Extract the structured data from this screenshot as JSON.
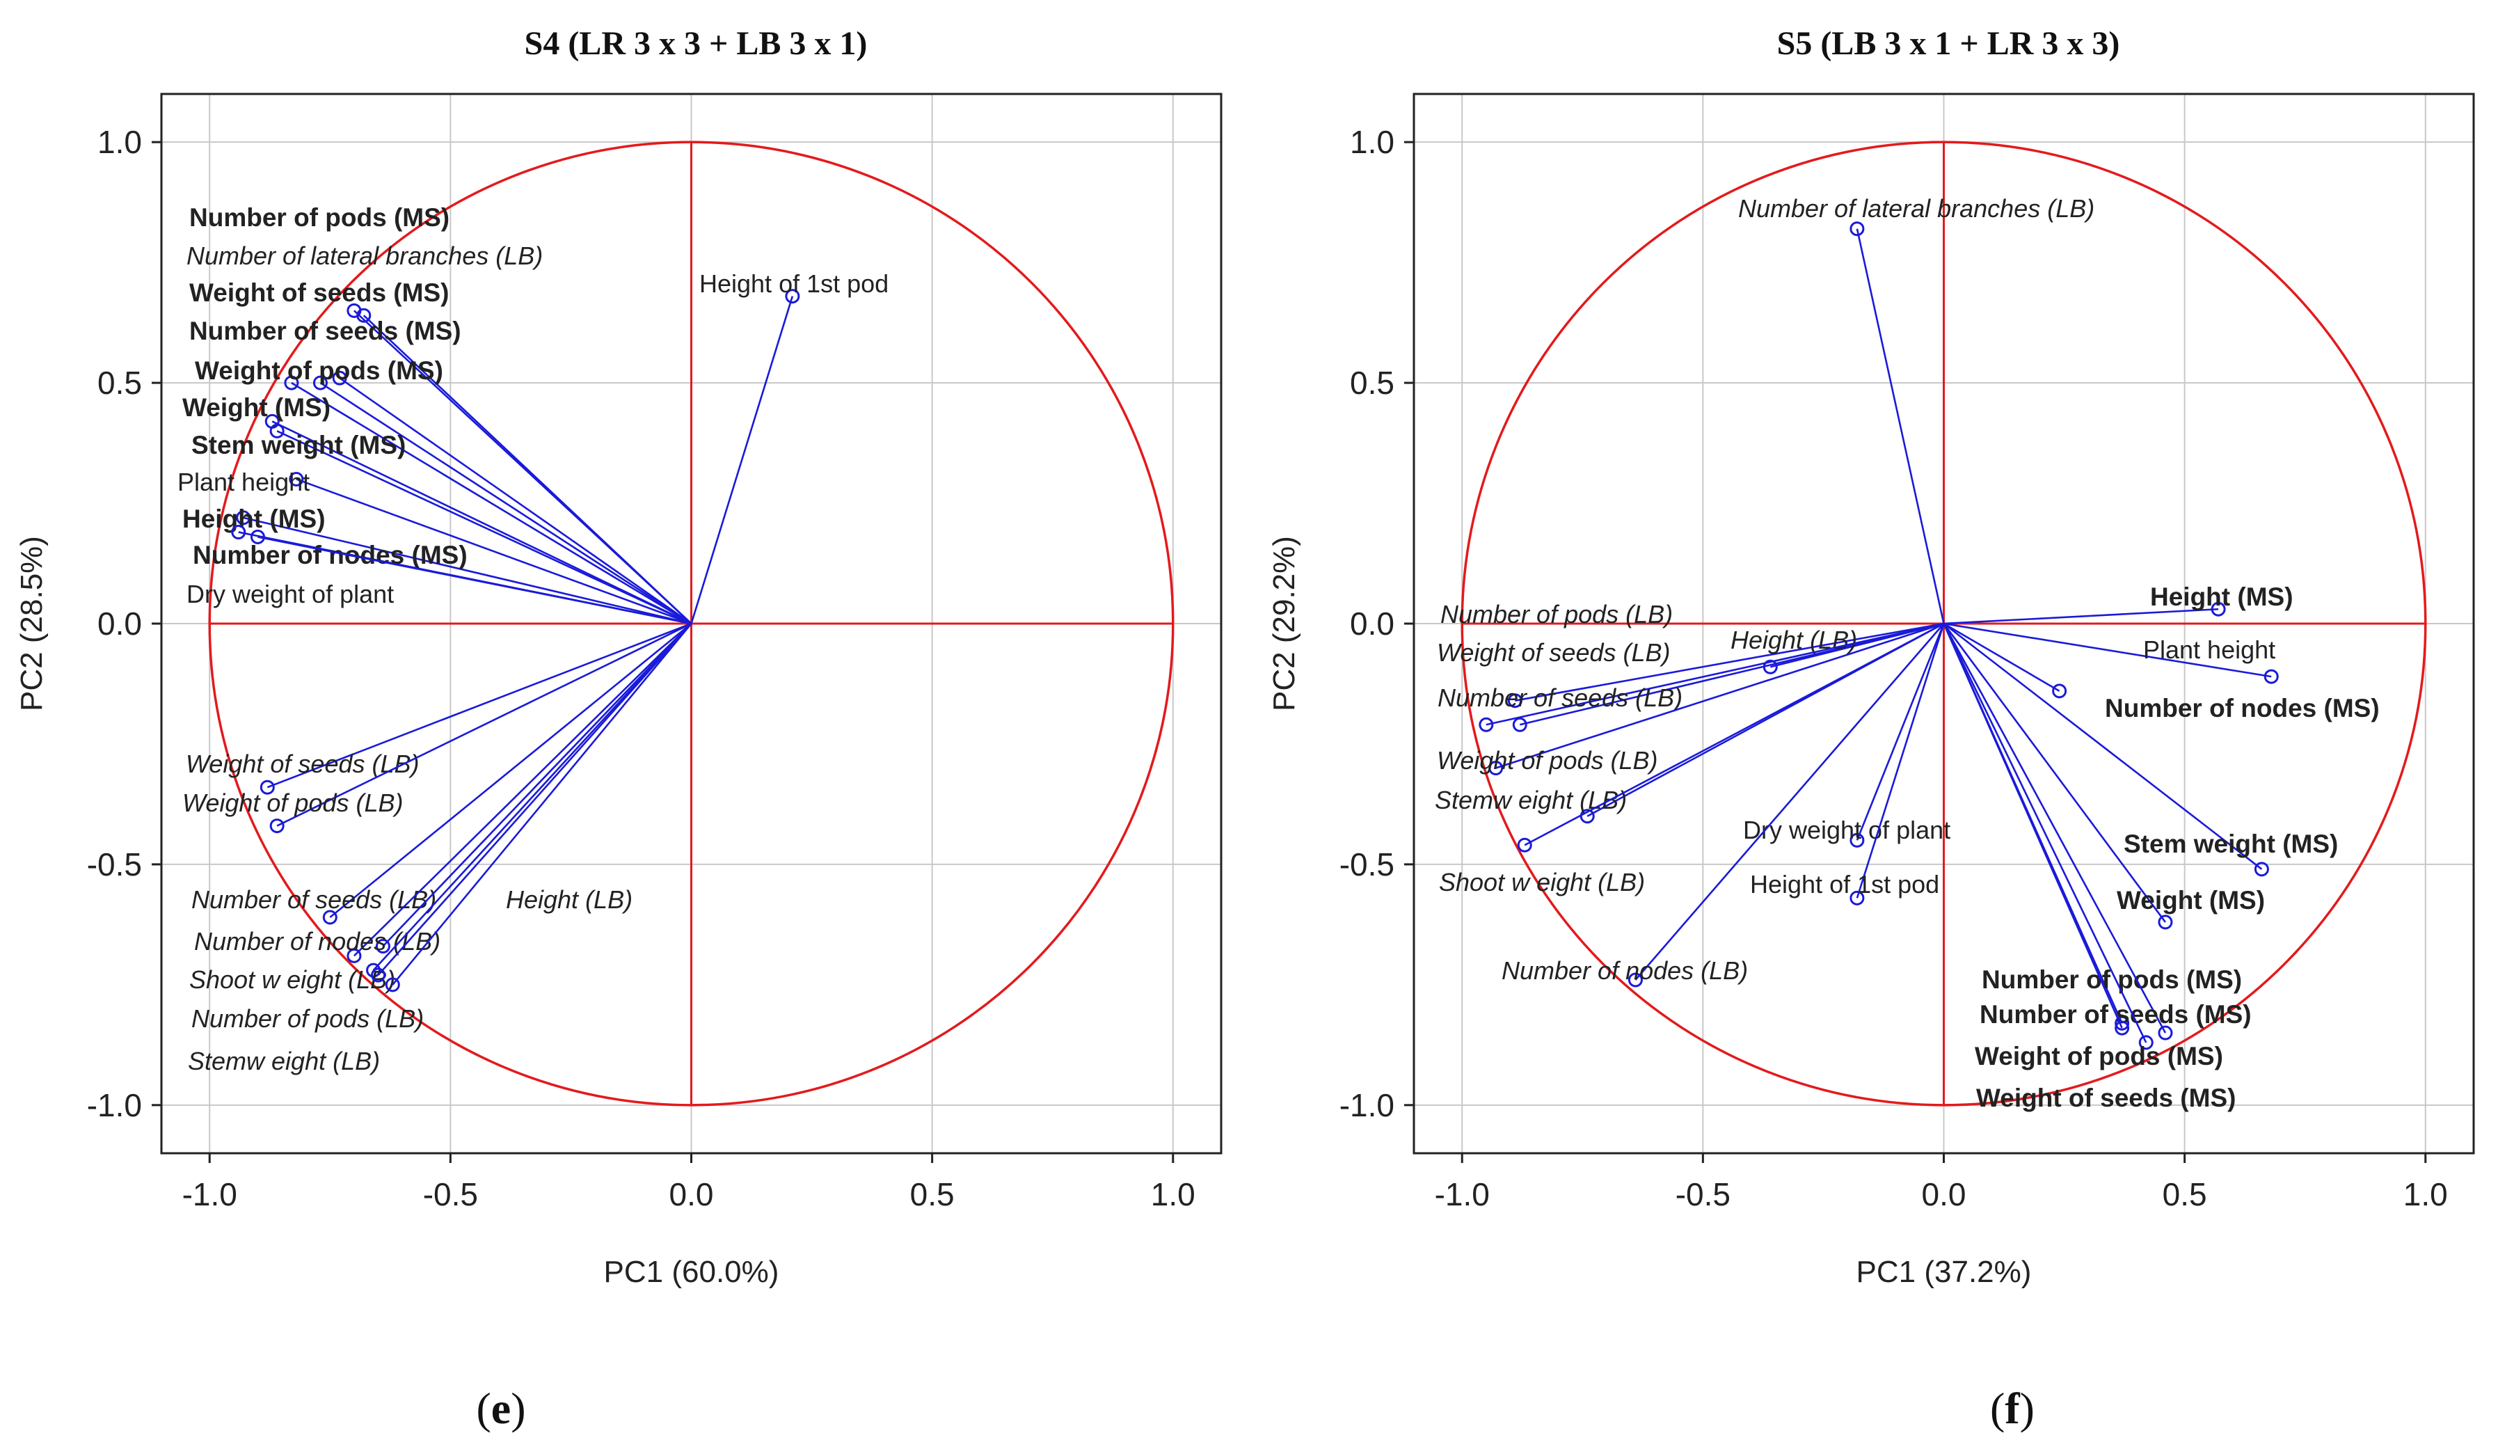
{
  "figure": {
    "panel_left": {
      "open": "(",
      "letter": "e",
      "close": ")"
    },
    "panel_right": {
      "open": "(",
      "letter": "f",
      "close": ")"
    }
  },
  "colors": {
    "vector": "#1a1ad9",
    "circle": "#e31a1c",
    "frame": "#222222",
    "grid": "#c8c8c8"
  },
  "chart_data": [
    {
      "type": "scatter",
      "subtype": "pca-correlation-circle",
      "title": "S4 (LR 3 x  3 + LB 3 x  1)",
      "xlabel": "PC1 (60.0%)",
      "ylabel": "PC2 (28.5%)",
      "xlim": [
        -1.1,
        1.1
      ],
      "ylim": [
        -1.1,
        1.1
      ],
      "xticks": [
        -1.0,
        -0.5,
        0.0,
        0.5,
        1.0
      ],
      "xtick_labels": [
        "-1.0",
        "-0.5",
        "0.0",
        "0.5",
        "1.0"
      ],
      "yticks": [
        -1.0,
        -0.5,
        0.0,
        0.5,
        1.0
      ],
      "ytick_labels": [
        "-1.0",
        "-0.5",
        "0.0",
        "0.5",
        "1.0"
      ],
      "grid": true,
      "unit_circle": true,
      "variables": [
        {
          "name": "Number of pods (MS)",
          "group": "MS",
          "x": -0.7,
          "y": 0.65
        },
        {
          "name": "Number of lateral branches (LB)",
          "group": "LB",
          "x": -0.68,
          "y": 0.64
        },
        {
          "name": "Weight of seeds (MS)",
          "group": "MS",
          "x": -0.73,
          "y": 0.51
        },
        {
          "name": "Number of seeds (MS)",
          "group": "MS",
          "x": -0.77,
          "y": 0.5
        },
        {
          "name": "Weight of pods (MS)",
          "group": "MS",
          "x": -0.83,
          "y": 0.5
        },
        {
          "name": "Weight (MS)",
          "group": "MS",
          "x": -0.87,
          "y": 0.42
        },
        {
          "name": "Stem weight (MS)",
          "group": "MS",
          "x": -0.86,
          "y": 0.4
        },
        {
          "name": "Plant height",
          "group": "other",
          "x": -0.82,
          "y": 0.3
        },
        {
          "name": "Height (MS)",
          "group": "MS",
          "x": -0.93,
          "y": 0.22
        },
        {
          "name": "Number of nodes (MS)",
          "group": "MS",
          "x": -0.94,
          "y": 0.19
        },
        {
          "name": "Dry weight of plant",
          "group": "other",
          "x": -0.9,
          "y": 0.18
        },
        {
          "name": "Height of 1st pod",
          "group": "other",
          "x": 0.21,
          "y": 0.68
        },
        {
          "name": "Weight of seeds (LB)",
          "group": "LB",
          "x": -0.88,
          "y": -0.34
        },
        {
          "name": "Weight of pods (LB)",
          "group": "LB",
          "x": -0.86,
          "y": -0.42
        },
        {
          "name": "Number of seeds (LB)",
          "group": "LB",
          "x": -0.75,
          "y": -0.61
        },
        {
          "name": "Height (LB)",
          "group": "LB",
          "x": -0.64,
          "y": -0.67
        },
        {
          "name": "Number of nodes (LB)",
          "group": "LB",
          "x": -0.7,
          "y": -0.69
        },
        {
          "name": "Shoot w eight (LB)",
          "group": "LB",
          "x": -0.66,
          "y": -0.72
        },
        {
          "name": "Number of pods (LB)",
          "group": "LB",
          "x": -0.65,
          "y": -0.73
        },
        {
          "name": "Stemw eight (LB)",
          "group": "LB",
          "x": -0.62,
          "y": -0.75
        }
      ]
    },
    {
      "type": "scatter",
      "subtype": "pca-correlation-circle",
      "title": "S5 (LB 3 x  1 + LR 3 x  3)",
      "xlabel": "PC1 (37.2%)",
      "ylabel": "PC2 (29.2%)",
      "xlim": [
        -1.1,
        1.1
      ],
      "ylim": [
        -1.1,
        1.1
      ],
      "xticks": [
        -1.0,
        -0.5,
        0.0,
        0.5,
        1.0
      ],
      "xtick_labels": [
        "-1.0",
        "-0.5",
        "0.0",
        "0.5",
        "1.0"
      ],
      "yticks": [
        -1.0,
        -0.5,
        0.0,
        0.5,
        1.0
      ],
      "ytick_labels": [
        "-1.0",
        "-0.5",
        "0.0",
        "0.5",
        "1.0"
      ],
      "grid": true,
      "unit_circle": true,
      "variables": [
        {
          "name": "Number of lateral branches (LB)",
          "group": "LB",
          "x": -0.18,
          "y": 0.82
        },
        {
          "name": "Height (MS)",
          "group": "MS",
          "x": 0.57,
          "y": 0.03
        },
        {
          "name": "Plant height",
          "group": "other",
          "x": 0.68,
          "y": -0.11
        },
        {
          "name": "Number of nodes (MS)",
          "group": "MS",
          "x": 0.24,
          "y": -0.14
        },
        {
          "name": "Stem weight (MS)",
          "group": "MS",
          "x": 0.66,
          "y": -0.51
        },
        {
          "name": "Weight (MS)",
          "group": "MS",
          "x": 0.46,
          "y": -0.62
        },
        {
          "name": "Number of pods (MS)",
          "group": "MS",
          "x": 0.37,
          "y": -0.83
        },
        {
          "name": "Number of seeds (MS)",
          "group": "MS",
          "x": 0.46,
          "y": -0.85
        },
        {
          "name": "Weight of pods (MS)",
          "group": "MS",
          "x": 0.42,
          "y": -0.87
        },
        {
          "name": "Weight of seeds (MS)",
          "group": "MS",
          "x": 0.37,
          "y": -0.84
        },
        {
          "name": "Number of pods (LB)",
          "group": "LB",
          "x": -0.89,
          "y": -0.16
        },
        {
          "name": "Weight of seeds (LB)",
          "group": "LB",
          "x": -0.88,
          "y": -0.21
        },
        {
          "name": "Height (LB)",
          "group": "LB",
          "x": -0.36,
          "y": -0.09
        },
        {
          "name": "Number of seeds (LB)",
          "group": "LB",
          "x": -0.95,
          "y": -0.21
        },
        {
          "name": "Weight of pods (LB)",
          "group": "LB",
          "x": -0.93,
          "y": -0.3
        },
        {
          "name": "Stemw eight (LB)",
          "group": "LB",
          "x": -0.74,
          "y": -0.4
        },
        {
          "name": "Shoot w eight (LB)",
          "group": "LB",
          "x": -0.87,
          "y": -0.46
        },
        {
          "name": "Dry weight of plant",
          "group": "other",
          "x": -0.18,
          "y": -0.45
        },
        {
          "name": "Height of 1st pod",
          "group": "other",
          "x": -0.18,
          "y": -0.57
        },
        {
          "name": "Number of nodes (LB)",
          "group": "LB",
          "x": -0.64,
          "y": -0.74
        }
      ]
    }
  ]
}
